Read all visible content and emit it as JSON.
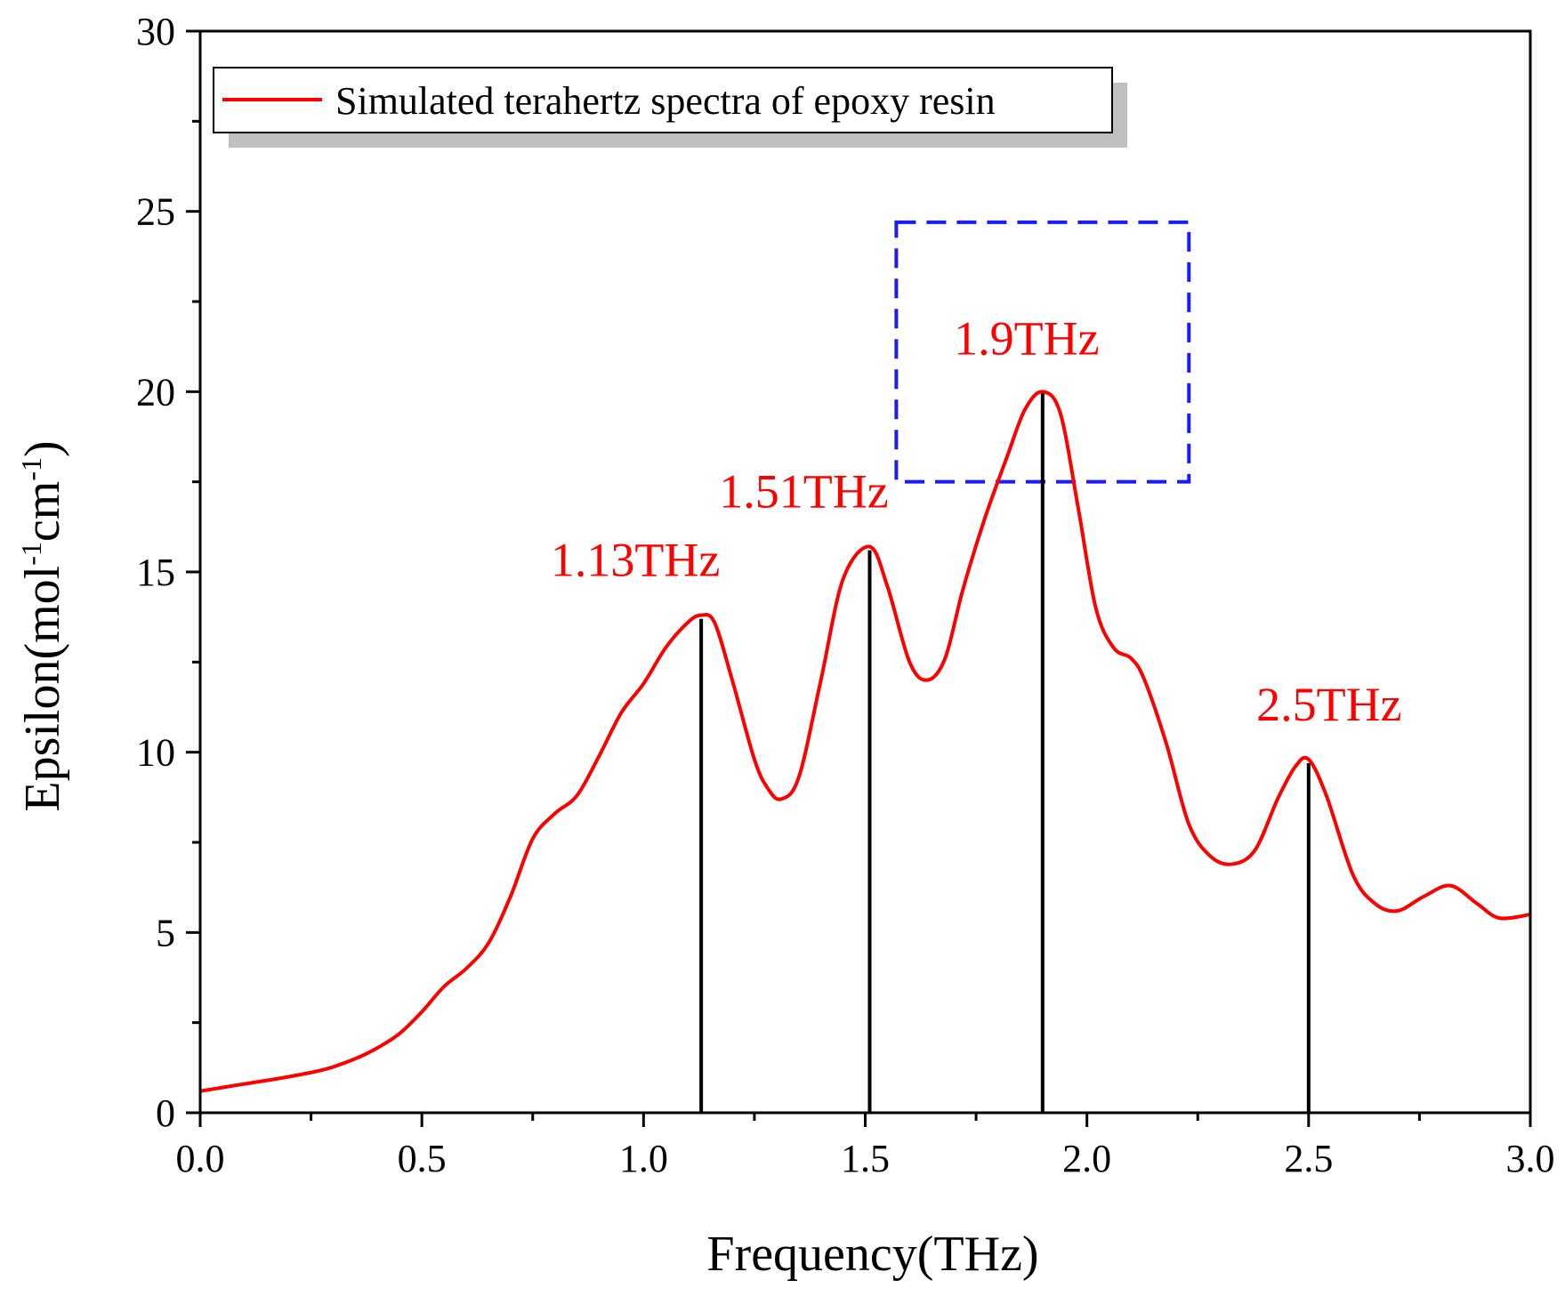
{
  "chart_data": {
    "type": "line",
    "title": "",
    "xlabel": "Frequency(THz)",
    "ylabel_parts": [
      "Epsilon(mol",
      "-1",
      "cm",
      "-1",
      ")"
    ],
    "xlim": [
      0,
      3
    ],
    "ylim": [
      0,
      30
    ],
    "xticks": [
      0.0,
      0.5,
      1.0,
      1.5,
      2.0,
      2.5,
      3.0
    ],
    "xtick_labels": [
      "0.0",
      "0.5",
      "1.0",
      "1.5",
      "2.0",
      "2.5",
      "3.0"
    ],
    "yticks": [
      0,
      5,
      10,
      15,
      20,
      25,
      30
    ],
    "ytick_labels": [
      "0",
      "5",
      "10",
      "15",
      "20",
      "25",
      "30"
    ],
    "legend": {
      "label": "Simulated terahertz spectra of epoxy resin",
      "position": "top-left"
    },
    "series": [
      {
        "name": "Simulated terahertz spectra of epoxy resin",
        "color": "#ff0000",
        "x": [
          0.0,
          0.1,
          0.2,
          0.28,
          0.35,
          0.4,
          0.45,
          0.5,
          0.55,
          0.6,
          0.65,
          0.7,
          0.75,
          0.8,
          0.85,
          0.9,
          0.95,
          1.0,
          1.05,
          1.1,
          1.13,
          1.16,
          1.2,
          1.25,
          1.28,
          1.31,
          1.35,
          1.4,
          1.45,
          1.51,
          1.55,
          1.6,
          1.64,
          1.68,
          1.72,
          1.77,
          1.82,
          1.86,
          1.9,
          1.94,
          1.98,
          2.02,
          2.06,
          2.1,
          2.13,
          2.18,
          2.23,
          2.28,
          2.33,
          2.38,
          2.43,
          2.47,
          2.5,
          2.54,
          2.6,
          2.65,
          2.7,
          2.76,
          2.82,
          2.88,
          2.93,
          3.0
        ],
        "y": [
          0.6,
          0.8,
          1.0,
          1.2,
          1.5,
          1.8,
          2.2,
          2.8,
          3.5,
          4.0,
          4.7,
          6.0,
          7.6,
          8.3,
          8.8,
          9.9,
          11.1,
          11.9,
          12.9,
          13.6,
          13.8,
          13.6,
          12.0,
          9.8,
          9.0,
          8.7,
          9.3,
          12.0,
          14.8,
          15.7,
          14.6,
          12.5,
          12.0,
          12.6,
          14.5,
          16.5,
          18.2,
          19.5,
          20.0,
          19.4,
          16.8,
          14.0,
          12.9,
          12.6,
          12.0,
          10.2,
          8.0,
          7.1,
          6.9,
          7.3,
          8.7,
          9.6,
          9.8,
          8.8,
          6.6,
          5.8,
          5.6,
          6.0,
          6.3,
          5.8,
          5.4,
          5.5
        ]
      }
    ],
    "peaks": [
      {
        "x": 1.13,
        "y": 13.7,
        "label": "1.13THz"
      },
      {
        "x": 1.51,
        "y": 15.6,
        "label": "1.51THz"
      },
      {
        "x": 1.9,
        "y": 20.0,
        "label": "1.9THz"
      },
      {
        "x": 2.5,
        "y": 9.7,
        "label": "2.5THz"
      }
    ],
    "highlight_box": {
      "x0": 1.57,
      "x1": 2.23,
      "y0": 17.5,
      "y1": 24.7,
      "color": "#1a1aff"
    },
    "annotation_color": "#ff0000"
  }
}
